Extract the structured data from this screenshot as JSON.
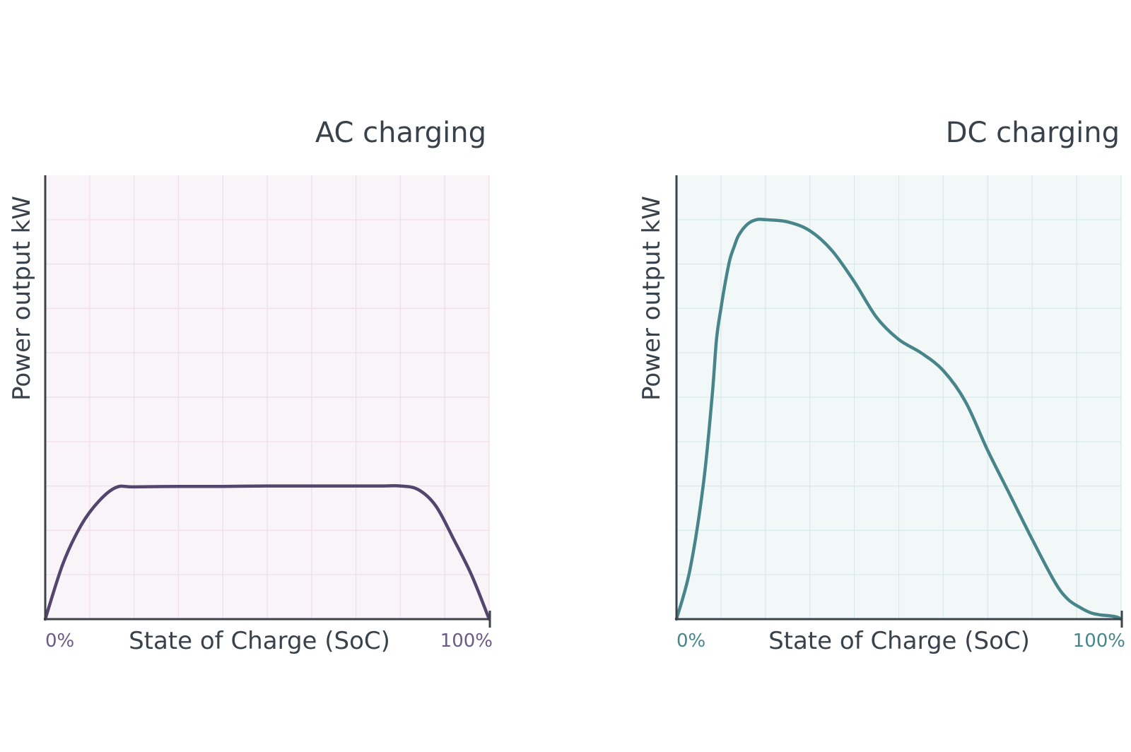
{
  "chart_data": [
    {
      "type": "line",
      "title": "AC charging",
      "xlabel": "State of Charge (SoC)",
      "ylabel": "Power output kW",
      "x_tick_labels": [
        "0%",
        "100%"
      ],
      "xlim": [
        0,
        100
      ],
      "ylim": [
        0,
        10
      ],
      "grid": true,
      "colors": {
        "line": "#54456f",
        "ticks": "#6a5a88",
        "plot_bg": "#f8f4f8",
        "grid": "#efdde7"
      },
      "series": [
        {
          "x": [
            0,
            4,
            8,
            12,
            16,
            20,
            30,
            40,
            50,
            60,
            70,
            76,
            80,
            84,
            88,
            92,
            96,
            100
          ],
          "values": [
            0,
            1.25,
            2.1,
            2.65,
            2.97,
            2.98,
            2.99,
            2.99,
            3.0,
            3.0,
            3.0,
            3.0,
            3.0,
            2.92,
            2.55,
            1.8,
            1.0,
            0
          ]
        }
      ]
    },
    {
      "type": "line",
      "title": "DC charging",
      "xlabel": "State of Charge (SoC)",
      "ylabel": "Power output kW",
      "x_tick_labels": [
        "0%",
        "100%"
      ],
      "xlim": [
        0,
        100
      ],
      "ylim": [
        0,
        10
      ],
      "grid": true,
      "colors": {
        "line": "#47858a",
        "ticks": "#47878b",
        "plot_bg": "#f2f8f8",
        "grid": "#d6eae9"
      },
      "series": [
        {
          "x": [
            0,
            3,
            6,
            8,
            9,
            10,
            11,
            12,
            13,
            14,
            16,
            18,
            20,
            25,
            30,
            35,
            40,
            45,
            50,
            55,
            60,
            65,
            70,
            75,
            80,
            85,
            88,
            91,
            93,
            95,
            97,
            99,
            100
          ],
          "values": [
            0,
            1.1,
            3.0,
            5.0,
            6.3,
            7.0,
            7.6,
            8.1,
            8.4,
            8.65,
            8.9,
            9.0,
            9.0,
            8.95,
            8.75,
            8.3,
            7.6,
            6.8,
            6.3,
            6.0,
            5.6,
            4.9,
            3.8,
            2.8,
            1.8,
            0.85,
            0.45,
            0.25,
            0.15,
            0.1,
            0.08,
            0.05,
            0
          ]
        }
      ]
    }
  ]
}
